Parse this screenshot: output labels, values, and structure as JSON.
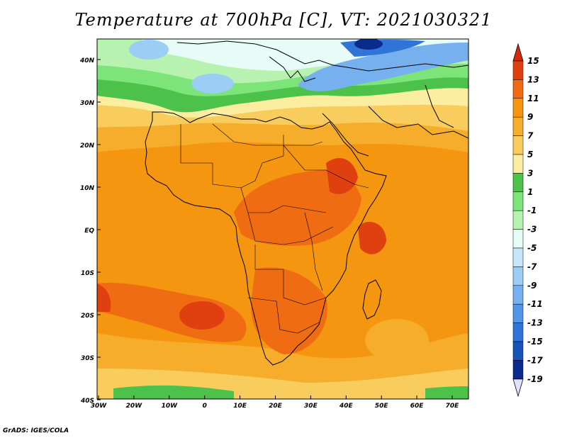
{
  "title": "Temperature at 700hPa [C], VT: 2021030321",
  "footer": "GrADS: IGES/COLA",
  "map": {
    "lat_labels": [
      "40N",
      "30N",
      "20N",
      "10N",
      "EQ",
      "10S",
      "20S",
      "30S",
      "40S"
    ],
    "lon_labels": [
      "30W",
      "20W",
      "10W",
      "0",
      "10E",
      "20E",
      "30E",
      "40E",
      "50E",
      "60E",
      "70E"
    ]
  },
  "colorbar": {
    "labels": [
      "15",
      "13",
      "11",
      "9",
      "7",
      "5",
      "3",
      "1",
      "-1",
      "-3",
      "-5",
      "-7",
      "-9",
      "-11",
      "-13",
      "-15",
      "-17",
      "-19"
    ],
    "colors": {
      "top_arrow": "#d52a0a",
      "bins": [
        "#e0400f",
        "#f06c12",
        "#f4960f",
        "#f6ad2c",
        "#f8cd5e",
        "#fbeea0",
        "#4cc24a",
        "#7de47a",
        "#b7f2b0",
        "#e7fcf7",
        "#c5e6fb",
        "#9ccdf4",
        "#77b0ee",
        "#5395e6",
        "#2f74d6",
        "#1553b8",
        "#0a2a8c"
      ],
      "bottom_arrow": "#e0e0ff"
    }
  }
}
